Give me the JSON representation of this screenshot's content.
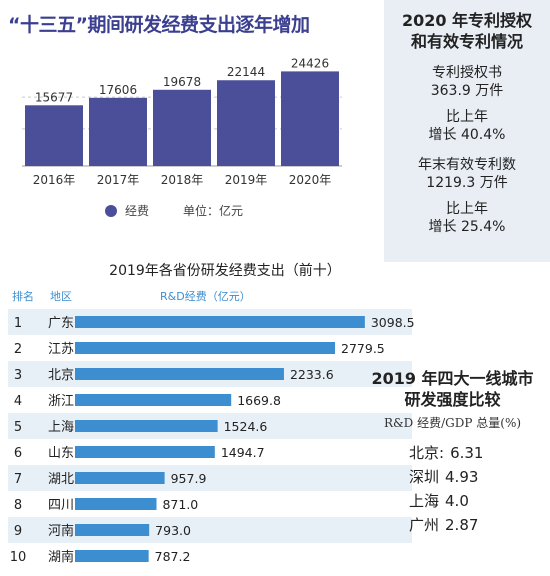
{
  "top_chart": {
    "title": "“十三五”期间研发经费支出逐年增加",
    "legend_label": "经费",
    "unit_label": "单位：亿元"
  },
  "patent_panel": {
    "title_line1": "2020 年专利授权",
    "title_line2": "和有效专利情况",
    "grant_label": "专利授权书",
    "grant_value": "363.9 万件",
    "grant_growth_label": "比上年",
    "grant_growth_value": "增长 40.4%",
    "valid_label": "年末有效专利数",
    "valid_value": "1219.3 万件",
    "valid_growth_label": "比上年",
    "valid_growth_value": "增长 25.4%"
  },
  "province_chart": {
    "title": "2019年各省份研发经费支出（前十）",
    "col_rank": "排名",
    "col_region": "地区",
    "col_value": "R&D经费（亿元）"
  },
  "city_box": {
    "title_line1": "2019 年四大一线城市",
    "title_line2": "研发强度比较",
    "subtitle": "R&D 经费/GDP 总量(%)",
    "cities": [
      {
        "name": "北京",
        "sep": ":",
        "value": "6.31"
      },
      {
        "name": "深圳",
        "sep": "",
        "value": "4.93"
      },
      {
        "name": "上海",
        "sep": "",
        "value": "4.0"
      },
      {
        "name": "广州",
        "sep": "",
        "value": "2.87"
      }
    ]
  },
  "chart_data": [
    {
      "type": "bar",
      "title": "“十三五”期间研发经费支出逐年增加",
      "categories": [
        "2016年",
        "2017年",
        "2018年",
        "2019年",
        "2020年"
      ],
      "values": [
        15677,
        17606,
        19678,
        22144,
        24426
      ],
      "series": [
        {
          "name": "经费",
          "values": [
            15677,
            17606,
            19678,
            22144,
            24426
          ]
        }
      ],
      "ylim": [
        0,
        26000
      ],
      "grid": true,
      "colors": {
        "bar": "#4b4f9a",
        "grid": "#c9c9c9"
      }
    },
    {
      "type": "bar",
      "orientation": "horizontal",
      "title": "2019年各省份研发经费支出（前十）",
      "ranks": [
        "1",
        "2",
        "3",
        "4",
        "5",
        "6",
        "7",
        "8",
        "9",
        "10"
      ],
      "categories": [
        "广东",
        "江苏",
        "北京",
        "浙江",
        "上海",
        "山东",
        "湖北",
        "四川",
        "河南",
        "湖南"
      ],
      "values": [
        3098.5,
        2779.5,
        2233.6,
        1669.8,
        1524.6,
        1494.7,
        957.9,
        871.0,
        793.0,
        787.2
      ],
      "labels": [
        "3098.5",
        "2779.5",
        "2233.6",
        "1669.8",
        "1524.6",
        "1494.7",
        "957.9",
        "871.0",
        "793.0",
        "787.2"
      ],
      "xlim": [
        0,
        3100
      ],
      "colors": {
        "bar": "#3c8ed0",
        "stripe": "#e8f0f7"
      }
    }
  ]
}
